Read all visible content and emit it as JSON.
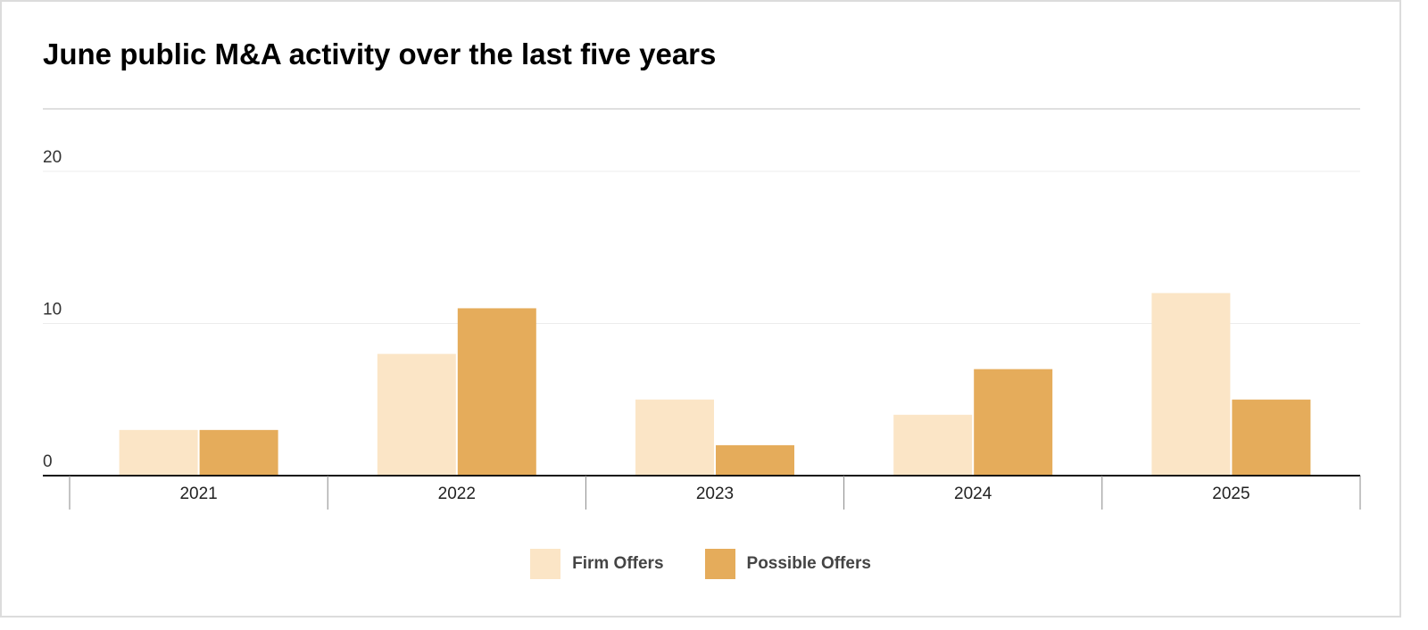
{
  "chart_data": {
    "type": "bar",
    "title": "June public M&A activity over the last five years",
    "categories": [
      "2021",
      "2022",
      "2023",
      "2024",
      "2025"
    ],
    "series": [
      {
        "name": "Firm Offers",
        "values": [
          3,
          8,
          5,
          4,
          12
        ],
        "color": "#fbe5c6"
      },
      {
        "name": "Possible Offers",
        "values": [
          3,
          11,
          2,
          7,
          5
        ],
        "color": "#e5ac5b"
      }
    ],
    "yticks": [
      "0",
      "10",
      "20"
    ],
    "ylim": [
      0,
      20
    ],
    "grid": true,
    "legend_position": "bottom-center"
  }
}
